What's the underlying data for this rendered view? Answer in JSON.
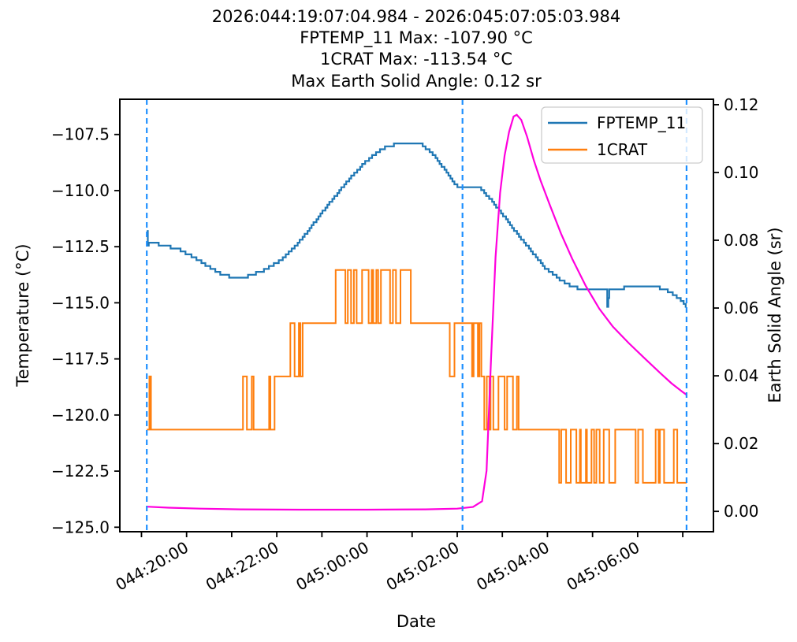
{
  "figure": {
    "title_lines": [
      "2026:044:19:07:04.984 - 2026:045:07:05:03.984",
      "FPTEMP_11 Max: -107.90 °C",
      "1CRAT Max: -113.54 °C",
      "Max Earth Solid Angle: 0.12 sr"
    ]
  },
  "chart_data": {
    "type": "line",
    "xlabel": "Date",
    "ylabel_left": "Temperature (°C)",
    "ylabel_right": "Earth Solid Angle (sr)",
    "time_range": {
      "start": "2026:044:19:07:04.984",
      "end": "2026:045:07:05:03.984"
    },
    "fptemp_max_c": -107.9,
    "crat_max_c": -113.54,
    "max_earth_solid_angle_sr": 0.12,
    "x_axis": {
      "lim": [
        18.52,
        31.68
      ],
      "unit": "hours from day 044 00:00",
      "ticks": [
        {
          "h": 19
        },
        {
          "h": 20,
          "label": "044:20:00"
        },
        {
          "h": 21
        },
        {
          "h": 22,
          "label": "044:22:00"
        },
        {
          "h": 23
        },
        {
          "h": 24,
          "label": "045:00:00"
        },
        {
          "h": 25
        },
        {
          "h": 26,
          "label": "045:02:00"
        },
        {
          "h": 27
        },
        {
          "h": 28,
          "label": "045:04:00"
        },
        {
          "h": 29
        },
        {
          "h": 30,
          "label": "045:06:00"
        },
        {
          "h": 31
        }
      ]
    },
    "y_left": {
      "lim": [
        -125.2,
        -105.93
      ],
      "ticks": [
        -107.5,
        -110.0,
        -112.5,
        -115.0,
        -117.5,
        -120.0,
        -122.5,
        -125.0
      ]
    },
    "y_right": {
      "lim": [
        -0.006,
        0.1216
      ],
      "ticks": [
        0.0,
        0.02,
        0.04,
        0.06,
        0.08,
        0.1,
        0.12
      ]
    },
    "vlines": {
      "color": "#1E90FF",
      "style": "dashed",
      "hours": [
        19.118,
        26.118,
        31.084
      ]
    },
    "series": [
      {
        "name": "FPTEMP_11",
        "axis": "left",
        "color": "#1f77b4",
        "style": "stepped",
        "points": [
          [
            19.118,
            -111.75
          ],
          [
            19.135,
            -112.1
          ],
          [
            19.145,
            -112.75
          ],
          [
            19.16,
            -112.3
          ],
          [
            19.4,
            -112.4
          ],
          [
            19.8,
            -112.6
          ],
          [
            20.1,
            -112.9
          ],
          [
            20.45,
            -113.35
          ],
          [
            20.8,
            -113.75
          ],
          [
            21.05,
            -113.88
          ],
          [
            21.35,
            -113.82
          ],
          [
            21.7,
            -113.55
          ],
          [
            22.05,
            -113.15
          ],
          [
            22.35,
            -112.6
          ],
          [
            22.65,
            -111.9
          ],
          [
            22.95,
            -111.1
          ],
          [
            23.25,
            -110.35
          ],
          [
            23.6,
            -109.5
          ],
          [
            23.95,
            -108.75
          ],
          [
            24.25,
            -108.25
          ],
          [
            24.5,
            -107.97
          ],
          [
            25.2,
            -107.93
          ],
          [
            25.45,
            -108.35
          ],
          [
            25.7,
            -109.0
          ],
          [
            25.95,
            -109.75
          ],
          [
            26.05,
            -109.82
          ],
          [
            26.5,
            -109.87
          ],
          [
            26.7,
            -110.3
          ],
          [
            27.0,
            -111.05
          ],
          [
            27.3,
            -111.85
          ],
          [
            27.6,
            -112.6
          ],
          [
            27.95,
            -113.45
          ],
          [
            28.3,
            -114.0
          ],
          [
            28.55,
            -114.3
          ],
          [
            28.9,
            -114.42
          ],
          [
            29.31,
            -114.45
          ],
          [
            29.33,
            -115.3
          ],
          [
            29.36,
            -114.45
          ],
          [
            29.7,
            -114.33
          ],
          [
            30.1,
            -114.27
          ],
          [
            30.45,
            -114.32
          ],
          [
            30.7,
            -114.5
          ],
          [
            30.95,
            -114.85
          ],
          [
            31.084,
            -115.18
          ]
        ]
      },
      {
        "name": "1CRAT",
        "axis": "left",
        "color": "#ff7f0e",
        "style": "quantized-square-wave",
        "levels": [
          -113.54,
          -115.91,
          -118.28,
          -120.65,
          -123.02
        ],
        "segments": [
          {
            "h0": 19.118,
            "h1": 19.21,
            "mode": "flicker",
            "base": 2,
            "alt": 3,
            "density": 0.5
          },
          {
            "h0": 19.21,
            "h1": 21.25,
            "mode": "steady",
            "level": 3
          },
          {
            "h0": 21.25,
            "h1": 21.95,
            "mode": "flicker",
            "base": 3,
            "alt": 2,
            "density": 0.35
          },
          {
            "h0": 21.95,
            "h1": 22.3,
            "mode": "steady",
            "level": 2
          },
          {
            "h0": 22.3,
            "h1": 22.65,
            "mode": "flicker",
            "base": 2,
            "alt": 1,
            "density": 0.6
          },
          {
            "h0": 22.65,
            "h1": 23.27,
            "mode": "steady",
            "level": 1
          },
          {
            "h0": 23.27,
            "h1": 24.97,
            "mode": "flicker",
            "base": 1,
            "alt": 0,
            "density": 0.55
          },
          {
            "h0": 24.97,
            "h1": 25.6,
            "mode": "steady",
            "level": 1
          },
          {
            "h0": 25.6,
            "h1": 25.95,
            "mode": "flicker",
            "base": 1,
            "alt": 2,
            "density": 0.45
          },
          {
            "h0": 25.95,
            "h1": 26.3,
            "mode": "steady",
            "level": 1
          },
          {
            "h0": 26.3,
            "h1": 26.6,
            "mode": "flicker",
            "base": 1,
            "alt": 2,
            "density": 0.5
          },
          {
            "h0": 26.6,
            "h1": 27.4,
            "mode": "flicker",
            "base": 2,
            "alt": 3,
            "density": 0.5
          },
          {
            "h0": 27.4,
            "h1": 28.26,
            "mode": "steady",
            "level": 3
          },
          {
            "h0": 28.26,
            "h1": 29.54,
            "mode": "flicker",
            "base": 3,
            "alt": 4,
            "density": 0.45
          },
          {
            "h0": 29.54,
            "h1": 29.93,
            "mode": "steady",
            "level": 3
          },
          {
            "h0": 29.93,
            "h1": 31.06,
            "mode": "flicker",
            "base": 3,
            "alt": 4,
            "density": 0.65
          },
          {
            "h0": 31.06,
            "h1": 31.084,
            "mode": "steady",
            "level": 4
          }
        ]
      },
      {
        "name": "Earth Solid Angle",
        "axis": "right",
        "color": "#ff00dd",
        "style": "smooth",
        "points": [
          [
            19.118,
            0.0014
          ],
          [
            19.6,
            0.0011
          ],
          [
            20.3,
            0.0008
          ],
          [
            21.2,
            0.0006
          ],
          [
            22.5,
            0.0005
          ],
          [
            24.0,
            0.0005
          ],
          [
            25.3,
            0.0006
          ],
          [
            26.0,
            0.0008
          ],
          [
            26.35,
            0.0013
          ],
          [
            26.55,
            0.003
          ],
          [
            26.65,
            0.012
          ],
          [
            26.75,
            0.045
          ],
          [
            26.85,
            0.075
          ],
          [
            26.95,
            0.094
          ],
          [
            27.05,
            0.105
          ],
          [
            27.15,
            0.112
          ],
          [
            27.25,
            0.1165
          ],
          [
            27.32,
            0.117
          ],
          [
            27.42,
            0.1155
          ],
          [
            27.55,
            0.1105
          ],
          [
            27.7,
            0.1035
          ],
          [
            27.85,
            0.0975
          ],
          [
            28.05,
            0.0905
          ],
          [
            28.3,
            0.082
          ],
          [
            28.55,
            0.0745
          ],
          [
            28.85,
            0.0665
          ],
          [
            29.15,
            0.0598
          ],
          [
            29.45,
            0.0545
          ],
          [
            29.8,
            0.0497
          ],
          [
            30.15,
            0.0452
          ],
          [
            30.5,
            0.0408
          ],
          [
            30.75,
            0.0378
          ],
          [
            31.0,
            0.0352
          ],
          [
            31.084,
            0.0344
          ]
        ]
      }
    ],
    "legend": {
      "position": "upper right",
      "entries": [
        "FPTEMP_11",
        "1CRAT"
      ]
    }
  }
}
